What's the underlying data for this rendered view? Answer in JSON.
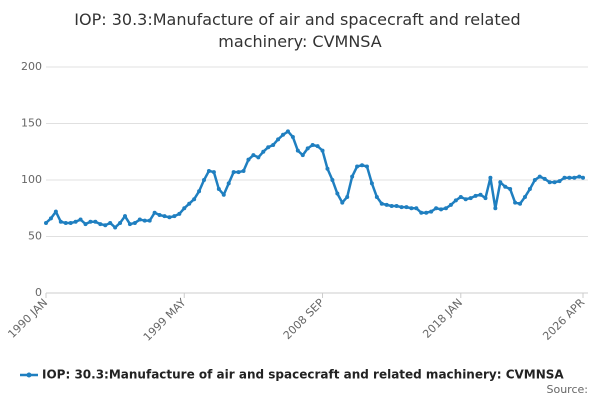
{
  "chart_data": {
    "type": "line",
    "title": "IOP: 30.3:Manufacture of air and spacecraft and related machinery: CVMNSA",
    "source": "Source:",
    "x": [
      "1990 JAN",
      "1990 MAY",
      "1990 SEP",
      "1991 JAN",
      "1991 MAY",
      "1991 SEP",
      "1992 JAN",
      "1992 MAY",
      "1992 SEP",
      "1993 JAN",
      "1993 MAY",
      "1993 SEP",
      "1994 JAN",
      "1994 MAY",
      "1994 SEP",
      "1995 JAN",
      "1995 MAY",
      "1995 SEP",
      "1996 JAN",
      "1996 MAY",
      "1996 SEP",
      "1997 JAN",
      "1997 MAY",
      "1997 SEP",
      "1998 JAN",
      "1998 MAY",
      "1998 SEP",
      "1999 JAN",
      "1999 MAY",
      "1999 SEP",
      "2000 JAN",
      "2000 MAY",
      "2000 SEP",
      "2001 JAN",
      "2001 MAY",
      "2001 SEP",
      "2002 JAN",
      "2002 MAY",
      "2002 SEP",
      "2003 JAN",
      "2003 MAY",
      "2003 SEP",
      "2004 JAN",
      "2004 MAY",
      "2004 SEP",
      "2005 JAN",
      "2005 MAY",
      "2005 SEP",
      "2006 JAN",
      "2006 MAY",
      "2006 SEP",
      "2007 JAN",
      "2007 MAY",
      "2007 SEP",
      "2008 JAN",
      "2008 MAY",
      "2008 SEP",
      "2009 JAN",
      "2009 MAY",
      "2009 SEP",
      "2010 JAN",
      "2010 MAY",
      "2010 SEP",
      "2011 JAN",
      "2011 MAY",
      "2011 SEP",
      "2012 JAN",
      "2012 MAY",
      "2012 SEP",
      "2013 JAN",
      "2013 MAY",
      "2013 SEP",
      "2014 JAN",
      "2014 MAY",
      "2014 SEP",
      "2015 JAN",
      "2015 MAY",
      "2015 SEP",
      "2016 JAN",
      "2016 MAY",
      "2016 SEP",
      "2017 JAN",
      "2017 MAY",
      "2017 SEP",
      "2018 JAN",
      "2018 MAY",
      "2018 SEP",
      "2019 JAN",
      "2019 MAY",
      "2019 SEP",
      "2020 JAN",
      "2020 MAY",
      "2020 SEP",
      "2021 JAN",
      "2021 MAY",
      "2021 SEP",
      "2022 JAN",
      "2022 MAY",
      "2022 SEP",
      "2023 JAN",
      "2023 MAY",
      "2023 SEP",
      "2024 JAN",
      "2024 MAY",
      "2024 SEP",
      "2025 JAN",
      "2025 MAY",
      "2025 SEP",
      "2026 JAN",
      "2026 APR"
    ],
    "series": [
      {
        "name": "IOP: 30.3:Manufacture of air and spacecraft and related machinery: CVMNSA",
        "color": "#1f7fc0",
        "values": [
          62,
          66,
          72,
          63,
          62,
          62,
          63,
          65,
          61,
          63,
          63,
          61,
          60,
          62,
          58,
          62,
          68,
          61,
          62,
          65,
          64,
          64,
          71,
          69,
          68,
          67,
          68,
          70,
          75,
          79,
          83,
          90,
          100,
          108,
          107,
          92,
          87,
          97,
          107,
          107,
          108,
          118,
          122,
          120,
          125,
          129,
          131,
          136,
          140,
          143,
          138,
          126,
          122,
          128,
          131,
          130,
          126,
          110,
          100,
          88,
          80,
          85,
          103,
          112,
          113,
          112,
          97,
          85,
          79,
          78,
          77,
          77,
          76,
          76,
          75,
          75,
          71,
          71,
          72,
          75,
          74,
          75,
          78,
          82,
          85,
          83,
          84,
          86,
          87,
          84,
          102,
          75,
          98,
          94,
          92,
          80,
          79,
          85,
          92,
          100,
          103,
          101,
          98,
          98,
          99,
          102,
          102,
          102,
          103,
          102
        ]
      }
    ],
    "xticks": [
      "1990 JAN",
      "1999 MAY",
      "2008 SEP",
      "2018 JAN",
      "2026 APR"
    ],
    "ylim": [
      0,
      200
    ],
    "yticks": [
      0,
      50,
      100,
      150,
      200
    ],
    "grid": true
  }
}
